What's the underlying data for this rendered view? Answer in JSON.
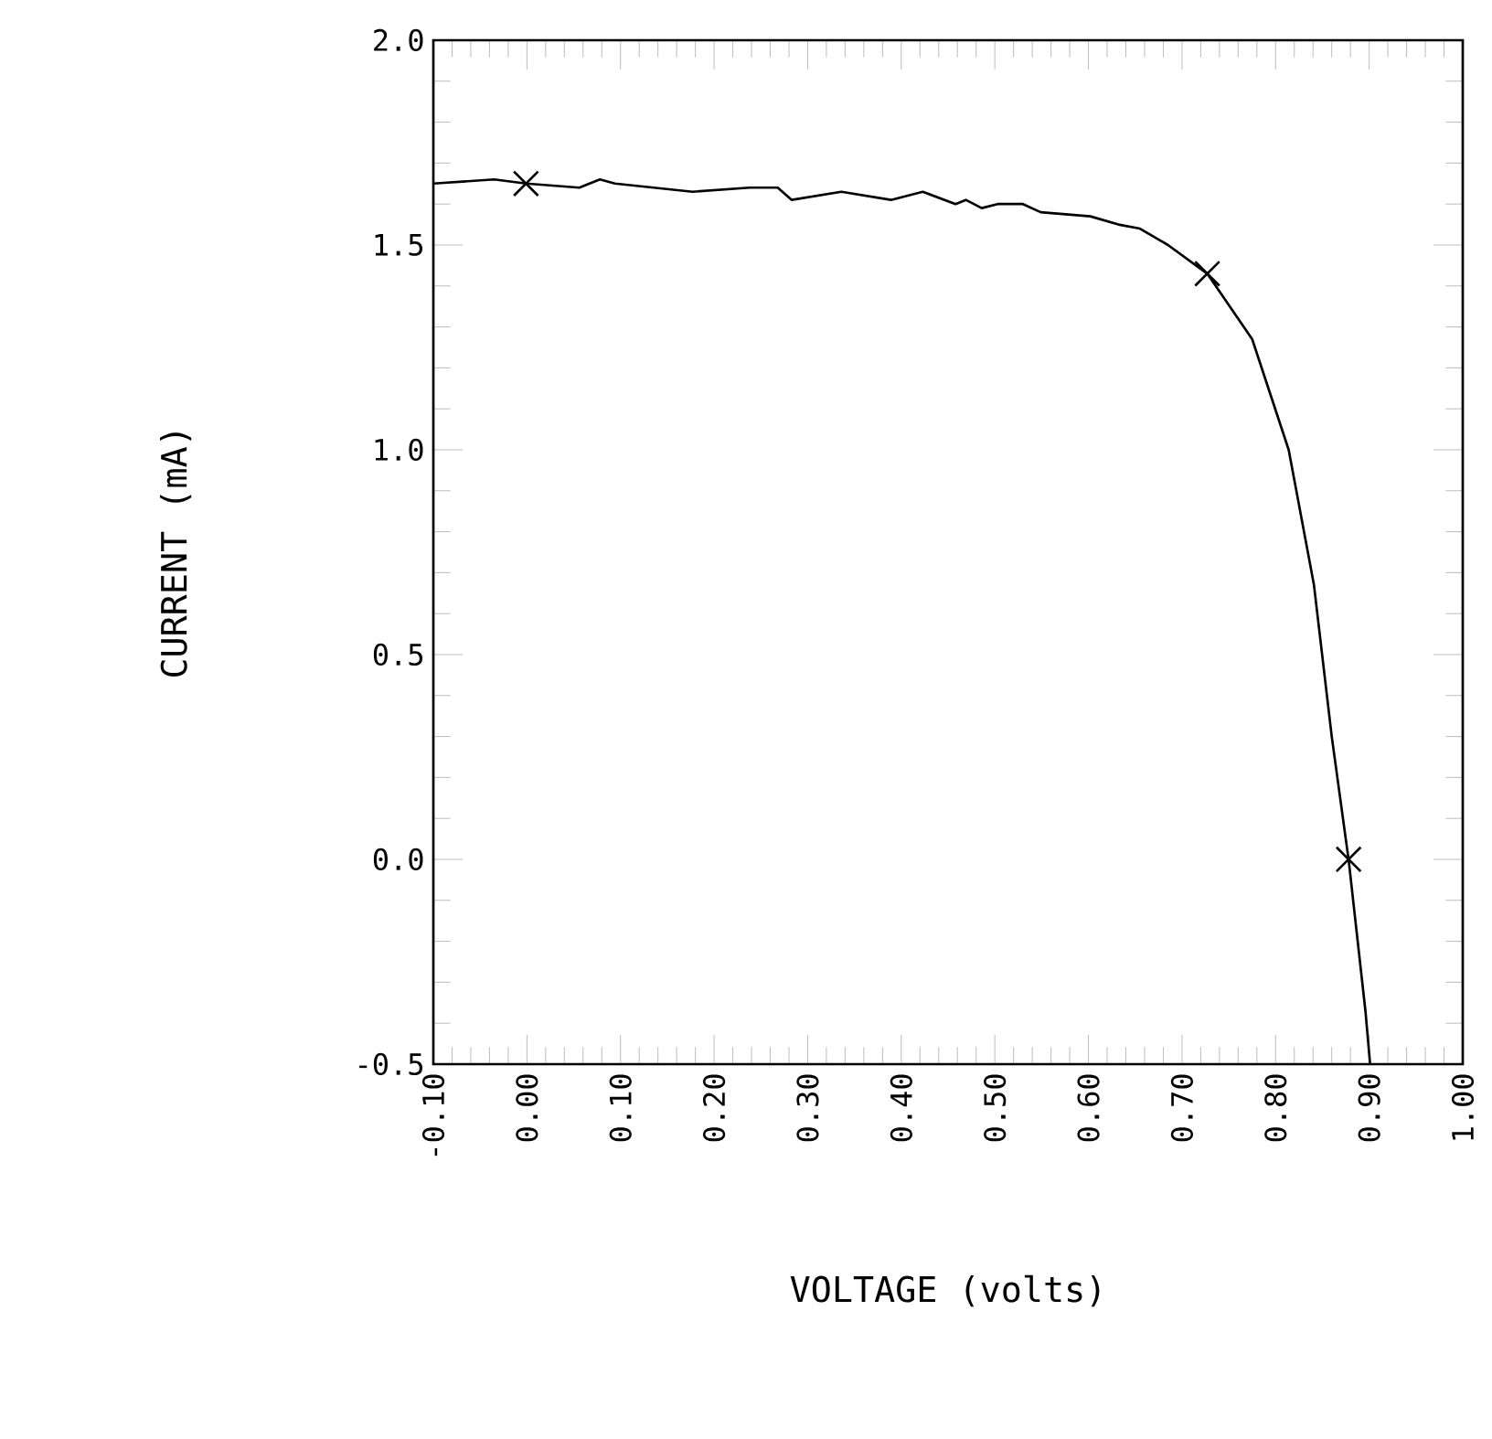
{
  "chart_data": {
    "type": "line",
    "xlabel": "VOLTAGE (volts)",
    "ylabel": "CURRENT (mA)",
    "xlim": [
      -0.1,
      1.0
    ],
    "ylim": [
      -0.5,
      2.0
    ],
    "xticks": [
      {
        "value": -0.1,
        "label": "-0.10"
      },
      {
        "value": 0.0,
        "label": "0.00"
      },
      {
        "value": 0.1,
        "label": "0.10"
      },
      {
        "value": 0.2,
        "label": "0.20"
      },
      {
        "value": 0.3,
        "label": "0.30"
      },
      {
        "value": 0.4,
        "label": "0.40"
      },
      {
        "value": 0.5,
        "label": "0.50"
      },
      {
        "value": 0.6,
        "label": "0.60"
      },
      {
        "value": 0.7,
        "label": "0.70"
      },
      {
        "value": 0.8,
        "label": "0.80"
      },
      {
        "value": 0.9,
        "label": "0.90"
      },
      {
        "value": 1.0,
        "label": "1.00"
      }
    ],
    "yticks": [
      {
        "value": -0.5,
        "label": "-0.5"
      },
      {
        "value": 0.0,
        "label": "0.0"
      },
      {
        "value": 0.5,
        "label": "0.5"
      },
      {
        "value": 1.0,
        "label": "1.0"
      },
      {
        "value": 1.5,
        "label": "1.5"
      },
      {
        "value": 2.0,
        "label": "2.0"
      }
    ],
    "series": [
      {
        "color": "#000000",
        "marker": "none",
        "line_style": "solid",
        "x": [
          -0.1,
          -0.035,
          -0.001,
          0.056,
          0.078,
          0.094,
          0.177,
          0.238,
          0.268,
          0.283,
          0.336,
          0.389,
          0.423,
          0.458,
          0.469,
          0.486,
          0.503,
          0.53,
          0.549,
          0.602,
          0.632,
          0.655,
          0.685,
          0.727,
          0.775,
          0.814,
          0.841,
          0.86,
          0.878,
          0.896,
          0.901
        ],
        "values": [
          1.65,
          1.66,
          1.65,
          1.64,
          1.66,
          1.65,
          1.63,
          1.64,
          1.64,
          1.61,
          1.63,
          1.61,
          1.63,
          1.6,
          1.61,
          1.59,
          1.6,
          1.6,
          1.58,
          1.57,
          1.55,
          1.54,
          1.5,
          1.43,
          1.27,
          1.0,
          0.67,
          0.3,
          0.0,
          -0.37,
          -0.5
        ]
      },
      {
        "type": "scatter",
        "color": "#000000",
        "marker": "cross",
        "x": [
          -0.001,
          0.727,
          0.878
        ],
        "values": [
          1.65,
          1.43,
          0.0
        ]
      }
    ]
  }
}
